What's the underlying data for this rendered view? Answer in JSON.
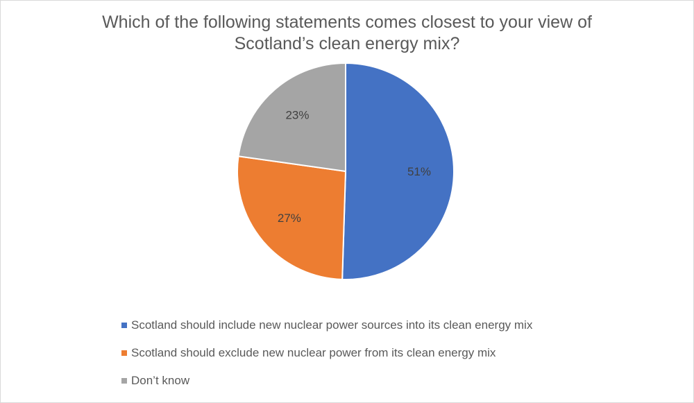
{
  "chart_data": {
    "type": "pie",
    "title_lines": [
      "Which of the following statements comes closest to your view of",
      "Scotland’s clean energy mix?"
    ],
    "start_angle_deg": 0,
    "direction": "clockwise",
    "slices": [
      {
        "label": "Scotland should include new nuclear power sources into its clean energy mix",
        "value": 51,
        "data_label": "51%",
        "color": "#4472C4"
      },
      {
        "label": "Scotland should exclude new nuclear power from its clean energy mix",
        "value": 27,
        "data_label": "27%",
        "color": "#ED7D31"
      },
      {
        "label": "Don’t know",
        "value": 23,
        "data_label": "23%",
        "color": "#A5A5A5"
      }
    ],
    "legend_position": "bottom"
  }
}
